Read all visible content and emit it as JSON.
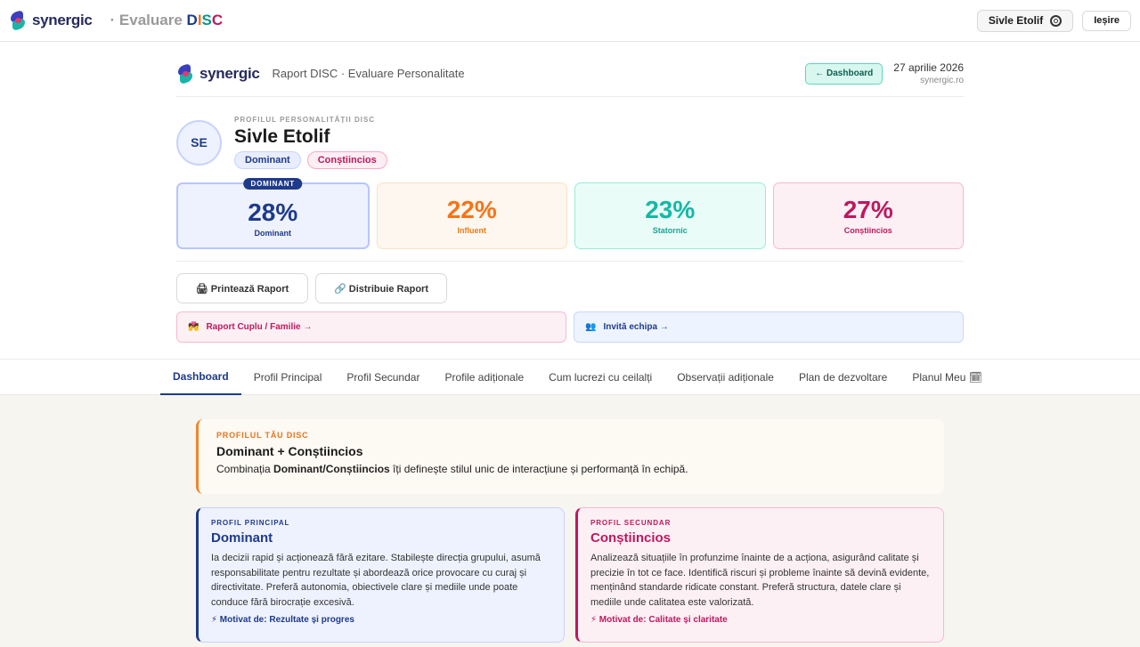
{
  "app": {
    "brand": "synergic",
    "product_prefix": "· Evaluare ",
    "product_letters": [
      "D",
      "I",
      "S",
      "C"
    ],
    "user_button": "Sivle Etolif",
    "logout": "Ieșire"
  },
  "report": {
    "brand": "synergic",
    "title": "Raport DISC · Evaluare Personalitate",
    "dashboard_btn": "← Dashboard",
    "date": "27 aprilie 2026",
    "site": "synergic.ro",
    "eyebrow": "PROFILUL PERSONALITĂȚII DISC",
    "initials": "SE",
    "name": "Sivle Etolif",
    "badges": [
      "Dominant",
      "Conștiincios"
    ]
  },
  "scores": [
    {
      "pct": "28%",
      "label": "Dominant",
      "tag": "DOMINANT"
    },
    {
      "pct": "22%",
      "label": "Influent"
    },
    {
      "pct": "23%",
      "label": "Statornic"
    },
    {
      "pct": "27%",
      "label": "Conștiincios"
    }
  ],
  "actions": {
    "print": "🖨 Printează Raport",
    "share": "🔗 Distribuie Raport",
    "couple_icon": "💏",
    "couple": "Raport Cuplu / Familie →",
    "team_icon": "👥",
    "team": "Invită echipa →"
  },
  "tabs": [
    "Dashboard",
    "Profil Principal",
    "Profil Secundar",
    "Profile adiționale",
    "Cum lucrezi cu ceilalți",
    "Observații adiționale",
    "Plan de dezvoltare",
    "Planul Meu 🗓"
  ],
  "summary": {
    "eyebrow": "PROFILUL TĂU DISC",
    "title": "Dominant + Conștiincios",
    "text_pre": "Combinația ",
    "text_bold": "Dominant/Conștiincios",
    "text_post": " îți definește stilul unic de interacțiune și performanță în echipă."
  },
  "primary": {
    "eyebrow": "PROFIL PRINCIPAL",
    "title": "Dominant",
    "text": "Ia decizii rapid și acționează fără ezitare. Stabilește direcția grupului, asumă responsabilitate pentru rezultate și abordează orice provocare cu curaj și directivitate. Preferă autonomia, obiectivele clare și mediile unde poate conduce fără birocrație excesivă.",
    "motivation": "⚡ Motivat de: Rezultate și progres"
  },
  "secondary": {
    "eyebrow": "PROFIL SECUNDAR",
    "title": "Conștiincios",
    "text": "Analizează situațiile în profunzime înainte de a acționa, asigurând calitate și precizie în tot ce face. Identifică riscuri și probleme înainte să devină evidente, menținând standarde ridicate constant. Preferă structura, datele clare și mediile unde calitatea este valorizată.",
    "motivation": "⚡ Motivat de: Calitate și claritate"
  }
}
